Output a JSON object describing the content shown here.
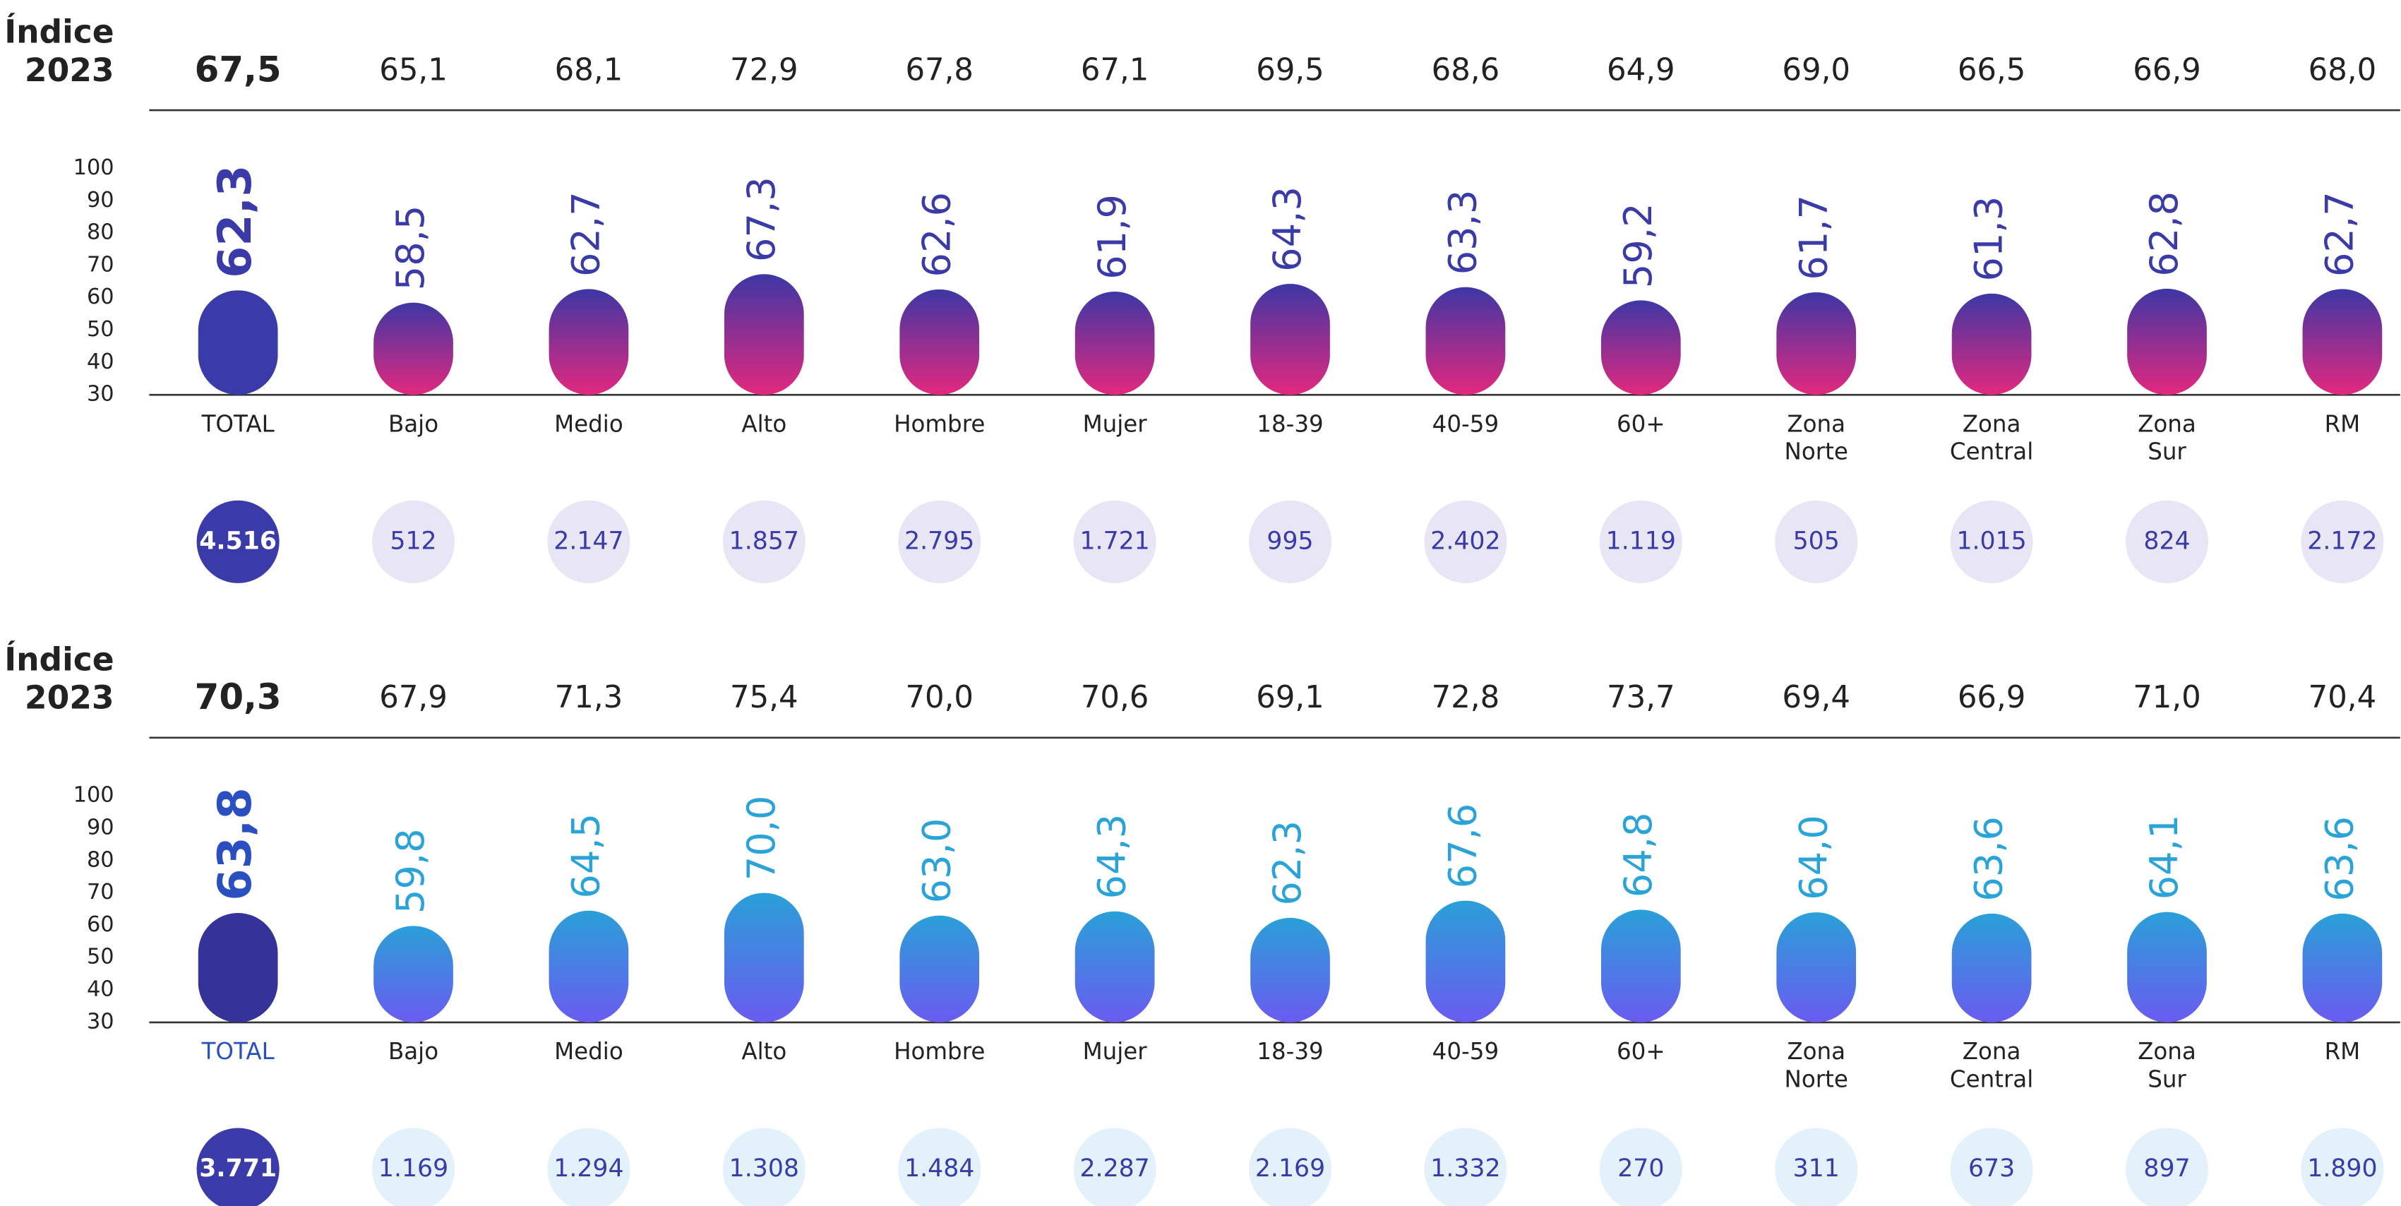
{
  "chart_data": [
    {
      "type": "bar",
      "index_title": "Índice 2023",
      "categories": [
        "TOTAL",
        "Bajo",
        "Medio",
        "Alto",
        "Hombre",
        "Mujer",
        "18-39",
        "40-59",
        "60+",
        "Zona Norte",
        "Zona Central",
        "Zona Sur",
        "RM"
      ],
      "index_values": [
        67.5,
        65.1,
        68.1,
        72.9,
        67.8,
        67.1,
        69.5,
        68.6,
        64.9,
        69.0,
        66.5,
        66.9,
        68.0
      ],
      "index_labels": [
        "67,5",
        "65,1",
        "68,1",
        "72,9",
        "67,8",
        "67,1",
        "69,5",
        "68,6",
        "64,9",
        "69,0",
        "66,5",
        "66,9",
        "68,0"
      ],
      "values": [
        62.3,
        58.5,
        62.7,
        67.3,
        62.6,
        61.9,
        64.3,
        63.3,
        59.2,
        61.7,
        61.3,
        62.8,
        62.7
      ],
      "value_labels": [
        "62,3",
        "58,5",
        "62,7",
        "67,3",
        "62,6",
        "61,9",
        "64,3",
        "63,3",
        "59,2",
        "61,7",
        "61,3",
        "62,8",
        "62,7"
      ],
      "sample_sizes": [
        4516,
        512,
        2147,
        1857,
        2795,
        1721,
        995,
        2402,
        1119,
        505,
        1015,
        824,
        2172
      ],
      "sample_labels": [
        "4.516",
        "512",
        "2.147",
        "1.857",
        "2.795",
        "1.721",
        "995",
        "2.402",
        "1.119",
        "505",
        "1.015",
        "824",
        "2.172"
      ],
      "ylim": [
        30,
        100
      ],
      "yticks": [
        30,
        40,
        50,
        60,
        70,
        80,
        90,
        100
      ],
      "gradient": [
        "#3d37a5",
        "#e3287e"
      ],
      "total_color": "#3a3aa8",
      "label_color": "#3a3aa8",
      "total_label_color": "#3a3aa8",
      "total_category_color": "#222222",
      "circle_color": "#e8e6f4",
      "total_circle_color": "#3a3aa8"
    },
    {
      "type": "bar",
      "index_title": "Índice 2023",
      "categories": [
        "TOTAL",
        "Bajo",
        "Medio",
        "Alto",
        "Hombre",
        "Mujer",
        "18-39",
        "40-59",
        "60+",
        "Zona Norte",
        "Zona Central",
        "Zona Sur",
        "RM"
      ],
      "index_values": [
        70.3,
        67.9,
        71.3,
        75.4,
        70.0,
        70.6,
        69.1,
        72.8,
        73.7,
        69.4,
        66.9,
        71.0,
        70.4
      ],
      "index_labels": [
        "70,3",
        "67,9",
        "71,3",
        "75,4",
        "70,0",
        "70,6",
        "69,1",
        "72,8",
        "73,7",
        "69,4",
        "66,9",
        "71,0",
        "70,4"
      ],
      "values": [
        63.8,
        59.8,
        64.5,
        70.0,
        63.0,
        64.3,
        62.3,
        67.6,
        64.8,
        64.0,
        63.6,
        64.1,
        63.6
      ],
      "value_labels": [
        "63,8",
        "59,8",
        "64,5",
        "70,0",
        "63,0",
        "64,3",
        "62,3",
        "67,6",
        "64,8",
        "64,0",
        "63,6",
        "64,1",
        "63,6"
      ],
      "sample_sizes": [
        3771,
        1169,
        1294,
        1308,
        1484,
        2287,
        2169,
        1332,
        270,
        311,
        673,
        897,
        1890
      ],
      "sample_labels": [
        "3.771",
        "1.169",
        "1.294",
        "1.308",
        "1.484",
        "2.287",
        "2.169",
        "1.332",
        "270",
        "311",
        "673",
        "897",
        "1.890"
      ],
      "ylim": [
        30,
        100
      ],
      "yticks": [
        30,
        40,
        50,
        60,
        70,
        80,
        90,
        100
      ],
      "gradient": [
        "#2aa0d8",
        "#6a5bf0"
      ],
      "total_color": "#35339a",
      "label_color": "#2aa3d8",
      "total_label_color": "#2a4fc0",
      "total_category_color": "#2a4fc0",
      "circle_color": "#e3f1fa",
      "total_circle_color": "#3a3aa8"
    }
  ]
}
